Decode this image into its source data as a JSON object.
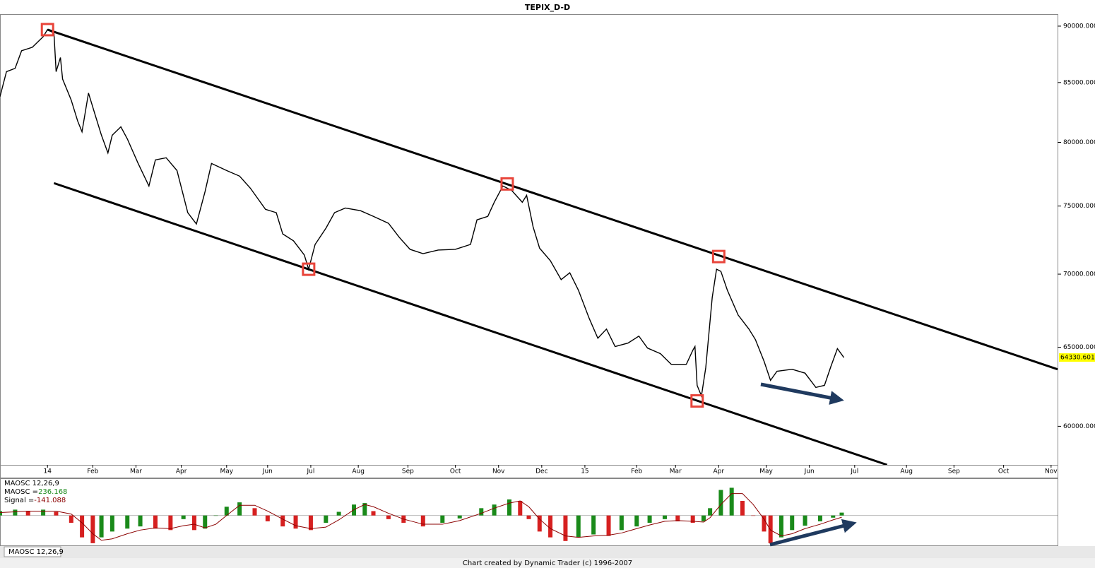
{
  "chart_data": [
    {
      "type": "line",
      "title": "TEPIX_D-D",
      "color": "#000000",
      "log_scale": true,
      "x": [
        0,
        3,
        7,
        10,
        15,
        20,
        22,
        25,
        26,
        28,
        29,
        33,
        36,
        38,
        41,
        44,
        47,
        50,
        52,
        56,
        59,
        64,
        69,
        72,
        77,
        82,
        87,
        91,
        95,
        98,
        105,
        111,
        116,
        123,
        128,
        131,
        136,
        141,
        143,
        146,
        151,
        155,
        160,
        167,
        173,
        180,
        185,
        190,
        196,
        203,
        211,
        218,
        221,
        226,
        229,
        233,
        237,
        242,
        244,
        247,
        250,
        255,
        260,
        264,
        268,
        273,
        277,
        281,
        285,
        291,
        296,
        300,
        306,
        311,
        318,
        321,
        322,
        323,
        325,
        327,
        330,
        332,
        334,
        337,
        342,
        347,
        350,
        354,
        357,
        360,
        367,
        373,
        378,
        382,
        385,
        388,
        391
      ],
      "values": [
        83800,
        85940,
        86230,
        87780,
        88090,
        89040,
        89680,
        89360,
        85940,
        87180,
        85300,
        83500,
        81740,
        80860,
        84100,
        82310,
        80580,
        79150,
        80580,
        81270,
        80280,
        78310,
        76540,
        78590,
        78760,
        77750,
        74500,
        73650,
        76100,
        78310,
        77750,
        77310,
        76370,
        74750,
        74500,
        72910,
        72400,
        71370,
        70350,
        72140,
        73330,
        74500,
        74850,
        74650,
        74220,
        73700,
        72660,
        71780,
        71470,
        71730,
        71780,
        72140,
        73960,
        74220,
        75290,
        76540,
        76210,
        75290,
        75820,
        73440,
        71870,
        70960,
        69610,
        70100,
        68870,
        66930,
        65600,
        66210,
        65050,
        65280,
        65740,
        64950,
        64580,
        63890,
        63890,
        64800,
        65050,
        62540,
        61870,
        63670,
        68370,
        70350,
        70200,
        68870,
        67160,
        66210,
        65510,
        64090,
        62860,
        63440,
        63570,
        63320,
        62410,
        62540,
        63760,
        64910,
        64330.601
      ],
      "xlim": [
        0,
        490
      ],
      "ylim": [
        57700,
        91100
      ],
      "xticks": [
        {
          "value": 22,
          "label": "14"
        },
        {
          "value": 43,
          "label": "Feb"
        },
        {
          "value": 63,
          "label": "Mar"
        },
        {
          "value": 84,
          "label": "Apr"
        },
        {
          "value": 105,
          "label": "May"
        },
        {
          "value": 124,
          "label": "Jun"
        },
        {
          "value": 144,
          "label": "Jul"
        },
        {
          "value": 166,
          "label": "Aug"
        },
        {
          "value": 189,
          "label": "Sep"
        },
        {
          "value": 211,
          "label": "Oct"
        },
        {
          "value": 231,
          "label": "Nov"
        },
        {
          "value": 251,
          "label": "Dec"
        },
        {
          "value": 271,
          "label": "15"
        },
        {
          "value": 295,
          "label": "Feb"
        },
        {
          "value": 313,
          "label": "Mar"
        },
        {
          "value": 333,
          "label": "Apr"
        },
        {
          "value": 355,
          "label": "May"
        },
        {
          "value": 375,
          "label": "Jun"
        },
        {
          "value": 396,
          "label": "Jul"
        },
        {
          "value": 420,
          "label": "Aug"
        },
        {
          "value": 442,
          "label": "Sep"
        },
        {
          "value": 465,
          "label": "Oct"
        },
        {
          "value": 487,
          "label": "Nov"
        }
      ],
      "yticks": [
        {
          "value": 90000,
          "label": "90000.000"
        },
        {
          "value": 85000,
          "label": "85000.000"
        },
        {
          "value": 80000,
          "label": "80000.000"
        },
        {
          "value": 75000,
          "label": "75000.000"
        },
        {
          "value": 70000,
          "label": "70000.000"
        },
        {
          "value": 65000,
          "label": "65000.000"
        },
        {
          "value": 60000,
          "label": "60000.000"
        }
      ],
      "last_value_color": "#ffff00",
      "trendlines": [
        {
          "x": [
            22,
            490
          ],
          "values": [
            89680,
            63570
          ]
        },
        {
          "x": [
            25,
            411
          ],
          "values": [
            76760,
            57700
          ]
        }
      ],
      "highlights": {
        "x": [
          22,
          143,
          235,
          323,
          333
        ],
        "values": [
          89680,
          70350,
          76700,
          61560,
          71260
        ],
        "color": "#e8443a"
      }
    },
    {
      "type": "oscillator",
      "title": "MAOSC 12,26,9",
      "x": [
        0,
        7,
        13,
        20,
        26,
        33,
        38,
        43,
        47,
        52,
        59,
        65,
        72,
        79,
        85,
        90,
        95,
        100,
        105,
        111,
        118,
        124,
        131,
        137,
        144,
        151,
        157,
        164,
        169,
        173,
        180,
        187,
        196,
        205,
        213,
        223,
        229,
        236,
        241,
        245,
        250,
        255,
        262,
        268,
        275,
        282,
        288,
        295,
        301,
        308,
        314,
        321,
        326,
        329,
        334,
        339,
        344,
        349,
        354,
        357,
        362,
        367,
        373,
        380,
        386,
        390
      ],
      "series": [
        {
          "name": "MAOSC =",
          "type": "bar",
          "up_color": "#1a8a1a",
          "down_color": "#d62020",
          "values": [
            360,
            480,
            360,
            480,
            300,
            -600,
            -1800,
            -2280,
            -1800,
            -1320,
            -1080,
            -900,
            -1080,
            -1200,
            -300,
            -1200,
            -1080,
            0,
            720,
            1080,
            600,
            -480,
            -900,
            -1080,
            -1200,
            -600,
            300,
            900,
            1020,
            360,
            -300,
            -600,
            -900,
            -600,
            -240,
            600,
            900,
            1320,
            1200,
            -300,
            -1320,
            -1800,
            -2100,
            -1800,
            -1560,
            -1680,
            -1200,
            -900,
            -600,
            -300,
            -480,
            -600,
            -480,
            600,
            2100,
            2280,
            1200,
            0,
            -1320,
            -2280,
            -1800,
            -1200,
            -840,
            -480,
            -180,
            236.168
          ]
        },
        {
          "name": "Signal =",
          "type": "line",
          "color": "#8b0000",
          "values": [
            240,
            300,
            360,
            360,
            360,
            120,
            -600,
            -1500,
            -2040,
            -1920,
            -1500,
            -1200,
            -1020,
            -1080,
            -840,
            -720,
            -1020,
            -720,
            0,
            840,
            840,
            360,
            -300,
            -840,
            -1080,
            -960,
            -360,
            480,
            900,
            720,
            180,
            -300,
            -720,
            -720,
            -420,
            180,
            600,
            1020,
            1200,
            720,
            -300,
            -1080,
            -1680,
            -1800,
            -1680,
            -1620,
            -1440,
            -1080,
            -780,
            -480,
            -420,
            -480,
            -540,
            -180,
            900,
            1800,
            1800,
            900,
            -300,
            -1200,
            -1680,
            -1500,
            -1080,
            -720,
            -360,
            -141.088
          ]
        }
      ],
      "ylim": [
        -2460,
        3060
      ]
    }
  ],
  "footer": "Chart created by Dynamic Trader  (c) 1996-2007"
}
